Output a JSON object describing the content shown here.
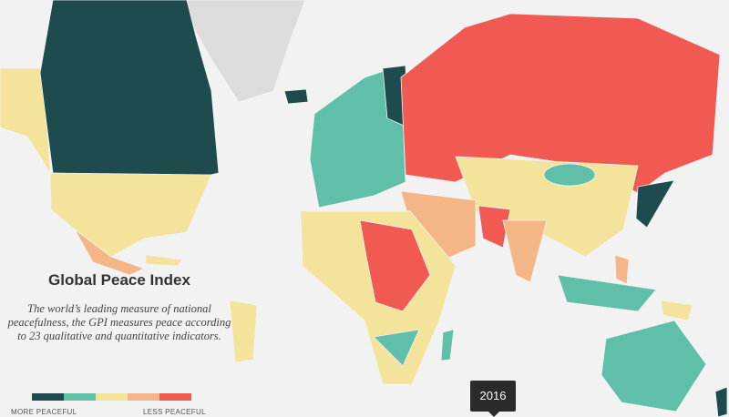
{
  "title": "Global Peace Index",
  "description": "The world’s leading measure of national peacefulness, the GPI measures peace according to 23 qualitative and quantitative indicators.",
  "legend": {
    "colors": [
      "#1d4b4e",
      "#5fbfa8",
      "#f3e39b",
      "#f4b687",
      "#f15a52"
    ],
    "low_label": "MORE PEACEFUL",
    "high_label": "LESS PEACEFUL"
  },
  "year": "2016"
}
